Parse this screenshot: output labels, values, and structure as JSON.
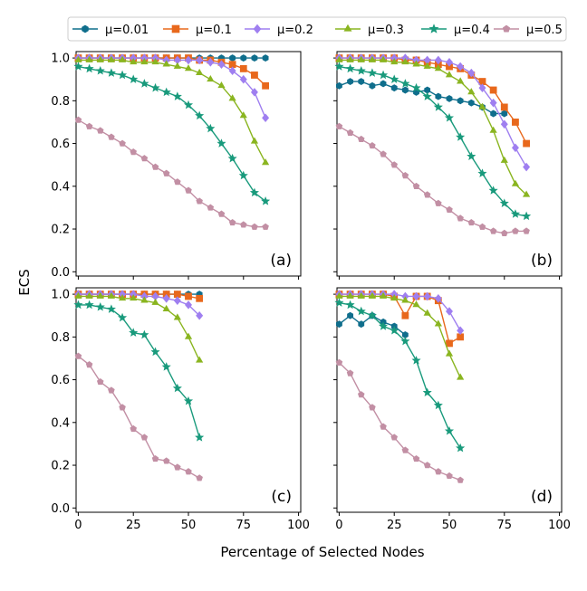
{
  "figure": {
    "ylabel": "ECS",
    "xlabel": "Percentage of Selected Nodes"
  },
  "legend": [
    {
      "label": "μ=0.01",
      "color": "#0f6e8c",
      "marker": "hexagon"
    },
    {
      "label": "μ=0.1",
      "color": "#e8681c",
      "marker": "square"
    },
    {
      "label": "μ=0.2",
      "color": "#9f7ff0",
      "marker": "diamond"
    },
    {
      "label": "μ=0.3",
      "color": "#8ab520",
      "marker": "triangle"
    },
    {
      "label": "μ=0.4",
      "color": "#199a7c",
      "marker": "star"
    },
    {
      "label": "μ=0.5",
      "color": "#c28fa4",
      "marker": "pentagon"
    }
  ],
  "chart_data": [
    {
      "type": "line",
      "panel_label": "(a)",
      "xlim": [
        -1,
        101
      ],
      "ylim": [
        -0.02,
        1.03
      ],
      "xticks": [
        "0",
        "25",
        "50",
        "75",
        "100"
      ],
      "yticks": [
        "0.0",
        "0.2",
        "0.4",
        "0.6",
        "0.8",
        "1.0"
      ],
      "series": [
        {
          "name": "μ=0.01",
          "x": [
            0,
            5,
            10,
            15,
            20,
            25,
            30,
            35,
            40,
            45,
            50,
            55,
            60,
            65,
            70,
            75,
            80,
            85
          ],
          "y": [
            1.0,
            1.0,
            1.0,
            1.0,
            1.0,
            1.0,
            1.0,
            1.0,
            1.0,
            1.0,
            1.0,
            1.0,
            1.0,
            1.0,
            1.0,
            1.0,
            1.0,
            1.0
          ]
        },
        {
          "name": "μ=0.1",
          "x": [
            0,
            5,
            10,
            15,
            20,
            25,
            30,
            35,
            40,
            45,
            50,
            55,
            60,
            65,
            70,
            75,
            80,
            85
          ],
          "y": [
            1.0,
            1.0,
            1.0,
            1.0,
            1.0,
            1.0,
            1.0,
            1.0,
            1.0,
            1.0,
            1.0,
            0.99,
            0.99,
            0.98,
            0.97,
            0.95,
            0.92,
            0.87
          ]
        },
        {
          "name": "μ=0.2",
          "x": [
            0,
            5,
            10,
            15,
            20,
            25,
            30,
            35,
            40,
            45,
            50,
            55,
            60,
            65,
            70,
            75,
            80,
            85
          ],
          "y": [
            1.0,
            1.0,
            1.0,
            1.0,
            1.0,
            1.0,
            1.0,
            1.0,
            0.99,
            0.99,
            0.99,
            0.99,
            0.98,
            0.97,
            0.94,
            0.9,
            0.84,
            0.72
          ]
        },
        {
          "name": "μ=0.3",
          "x": [
            0,
            5,
            10,
            15,
            20,
            25,
            30,
            35,
            40,
            45,
            50,
            55,
            60,
            65,
            70,
            75,
            80,
            85
          ],
          "y": [
            0.99,
            0.99,
            0.99,
            0.99,
            0.99,
            0.98,
            0.98,
            0.98,
            0.97,
            0.96,
            0.95,
            0.93,
            0.9,
            0.87,
            0.81,
            0.73,
            0.61,
            0.51
          ]
        },
        {
          "name": "μ=0.4",
          "x": [
            0,
            5,
            10,
            15,
            20,
            25,
            30,
            35,
            40,
            45,
            50,
            55,
            60,
            65,
            70,
            75,
            80,
            85
          ],
          "y": [
            0.96,
            0.95,
            0.94,
            0.93,
            0.92,
            0.9,
            0.88,
            0.86,
            0.84,
            0.82,
            0.78,
            0.73,
            0.67,
            0.6,
            0.53,
            0.45,
            0.37,
            0.33
          ]
        },
        {
          "name": "μ=0.5",
          "x": [
            0,
            5,
            10,
            15,
            20,
            25,
            30,
            35,
            40,
            45,
            50,
            55,
            60,
            65,
            70,
            75,
            80,
            85
          ],
          "y": [
            0.71,
            0.68,
            0.66,
            0.63,
            0.6,
            0.56,
            0.53,
            0.49,
            0.46,
            0.42,
            0.38,
            0.33,
            0.3,
            0.27,
            0.23,
            0.22,
            0.21,
            0.21
          ]
        }
      ]
    },
    {
      "type": "line",
      "panel_label": "(b)",
      "xlim": [
        -1,
        101
      ],
      "ylim": [
        -0.02,
        1.03
      ],
      "xticks": [
        "0",
        "25",
        "50",
        "75",
        "100"
      ],
      "yticks": [
        "0.0",
        "0.2",
        "0.4",
        "0.6",
        "0.8",
        "1.0"
      ],
      "series": [
        {
          "name": "μ=0.01",
          "x": [
            0,
            5,
            10,
            15,
            20,
            25,
            30,
            35,
            40,
            45,
            50,
            55,
            60,
            65,
            70,
            75
          ],
          "y": [
            0.87,
            0.89,
            0.89,
            0.87,
            0.88,
            0.86,
            0.85,
            0.84,
            0.85,
            0.82,
            0.81,
            0.8,
            0.79,
            0.77,
            0.74,
            0.74
          ]
        },
        {
          "name": "μ=0.1",
          "x": [
            0,
            5,
            10,
            15,
            20,
            25,
            30,
            35,
            40,
            45,
            50,
            55,
            60,
            65,
            70,
            75,
            80,
            85
          ],
          "y": [
            1.0,
            1.0,
            1.0,
            1.0,
            1.0,
            1.0,
            0.99,
            0.99,
            0.98,
            0.97,
            0.96,
            0.95,
            0.92,
            0.89,
            0.85,
            0.77,
            0.7,
            0.6
          ]
        },
        {
          "name": "μ=0.2",
          "x": [
            0,
            5,
            10,
            15,
            20,
            25,
            30,
            35,
            40,
            45,
            50,
            55,
            60,
            65,
            70,
            75,
            80,
            85
          ],
          "y": [
            1.0,
            1.0,
            1.0,
            1.0,
            1.0,
            1.0,
            1.0,
            0.99,
            0.99,
            0.99,
            0.98,
            0.96,
            0.93,
            0.86,
            0.79,
            0.69,
            0.58,
            0.49
          ]
        },
        {
          "name": "μ=0.3",
          "x": [
            0,
            5,
            10,
            15,
            20,
            25,
            30,
            35,
            40,
            45,
            50,
            55,
            60,
            65,
            70,
            75,
            80,
            85
          ],
          "y": [
            0.99,
            0.99,
            0.99,
            0.99,
            0.99,
            0.98,
            0.98,
            0.97,
            0.96,
            0.95,
            0.92,
            0.89,
            0.84,
            0.77,
            0.66,
            0.52,
            0.41,
            0.36
          ]
        },
        {
          "name": "μ=0.4",
          "x": [
            0,
            5,
            10,
            15,
            20,
            25,
            30,
            35,
            40,
            45,
            50,
            55,
            60,
            65,
            70,
            75,
            80,
            85
          ],
          "y": [
            0.96,
            0.95,
            0.94,
            0.93,
            0.92,
            0.9,
            0.88,
            0.86,
            0.82,
            0.77,
            0.72,
            0.63,
            0.54,
            0.46,
            0.38,
            0.32,
            0.27,
            0.26
          ]
        },
        {
          "name": "μ=0.5",
          "x": [
            0,
            5,
            10,
            15,
            20,
            25,
            30,
            35,
            40,
            45,
            50,
            55,
            60,
            65,
            70,
            75,
            80,
            85
          ],
          "y": [
            0.68,
            0.65,
            0.62,
            0.59,
            0.55,
            0.5,
            0.45,
            0.4,
            0.36,
            0.32,
            0.29,
            0.25,
            0.23,
            0.21,
            0.19,
            0.18,
            0.19,
            0.19
          ]
        }
      ]
    },
    {
      "type": "line",
      "panel_label": "(c)",
      "xlim": [
        -1,
        101
      ],
      "ylim": [
        -0.02,
        1.03
      ],
      "xticks": [
        "0",
        "25",
        "50",
        "75",
        "100"
      ],
      "yticks": [
        "0.0",
        "0.2",
        "0.4",
        "0.6",
        "0.8",
        "1.0"
      ],
      "series": [
        {
          "name": "μ=0.01",
          "x": [
            0,
            5,
            10,
            15,
            20,
            25,
            30,
            35,
            40,
            45,
            50,
            55
          ],
          "y": [
            1.0,
            1.0,
            1.0,
            1.0,
            1.0,
            1.0,
            1.0,
            1.0,
            1.0,
            1.0,
            1.0,
            1.0
          ]
        },
        {
          "name": "μ=0.1",
          "x": [
            0,
            5,
            10,
            15,
            20,
            25,
            30,
            35,
            40,
            45,
            50,
            55
          ],
          "y": [
            1.0,
            1.0,
            1.0,
            1.0,
            1.0,
            1.0,
            1.0,
            1.0,
            1.0,
            1.0,
            0.99,
            0.98
          ]
        },
        {
          "name": "μ=0.2",
          "x": [
            0,
            5,
            10,
            15,
            20,
            25,
            30,
            35,
            40,
            45,
            50,
            55
          ],
          "y": [
            1.0,
            1.0,
            1.0,
            1.0,
            1.0,
            1.0,
            0.99,
            0.99,
            0.98,
            0.97,
            0.95,
            0.9
          ]
        },
        {
          "name": "μ=0.3",
          "x": [
            0,
            5,
            10,
            15,
            20,
            25,
            30,
            35,
            40,
            45,
            50,
            55
          ],
          "y": [
            0.99,
            0.99,
            0.99,
            0.99,
            0.98,
            0.98,
            0.97,
            0.96,
            0.93,
            0.89,
            0.8,
            0.69
          ]
        },
        {
          "name": "μ=0.4",
          "x": [
            0,
            5,
            10,
            15,
            20,
            25,
            30,
            35,
            40,
            45,
            50,
            55
          ],
          "y": [
            0.95,
            0.95,
            0.94,
            0.93,
            0.89,
            0.82,
            0.81,
            0.73,
            0.66,
            0.56,
            0.5,
            0.33
          ]
        },
        {
          "name": "μ=0.5",
          "x": [
            0,
            5,
            10,
            15,
            20,
            25,
            30,
            35,
            40,
            45,
            50,
            55
          ],
          "y": [
            0.71,
            0.67,
            0.59,
            0.55,
            0.47,
            0.37,
            0.33,
            0.23,
            0.22,
            0.19,
            0.17,
            0.14
          ]
        }
      ]
    },
    {
      "type": "line",
      "panel_label": "(d)",
      "xlim": [
        -1,
        101
      ],
      "ylim": [
        -0.02,
        1.03
      ],
      "xticks": [
        "0",
        "25",
        "50",
        "75",
        "100"
      ],
      "yticks": [
        "0.0",
        "0.2",
        "0.4",
        "0.6",
        "0.8",
        "1.0"
      ],
      "series": [
        {
          "name": "μ=0.01",
          "x": [
            0,
            5,
            10,
            15,
            20,
            25,
            30
          ],
          "y": [
            0.86,
            0.9,
            0.86,
            0.9,
            0.87,
            0.85,
            0.81
          ]
        },
        {
          "name": "μ=0.1",
          "x": [
            0,
            5,
            10,
            15,
            20,
            25,
            30,
            35,
            40,
            45,
            50,
            55
          ],
          "y": [
            1.0,
            1.0,
            1.0,
            1.0,
            1.0,
            0.99,
            0.9,
            0.99,
            0.99,
            0.97,
            0.77,
            0.8
          ]
        },
        {
          "name": "μ=0.2",
          "x": [
            0,
            5,
            10,
            15,
            20,
            25,
            30,
            35,
            40,
            45,
            50,
            55
          ],
          "y": [
            1.0,
            1.0,
            1.0,
            1.0,
            1.0,
            1.0,
            0.99,
            0.99,
            0.99,
            0.98,
            0.92,
            0.83
          ]
        },
        {
          "name": "μ=0.3",
          "x": [
            0,
            5,
            10,
            15,
            20,
            25,
            30,
            35,
            40,
            45,
            50,
            55
          ],
          "y": [
            0.99,
            0.99,
            0.99,
            0.99,
            0.99,
            0.98,
            0.97,
            0.95,
            0.91,
            0.86,
            0.72,
            0.61
          ]
        },
        {
          "name": "μ=0.4",
          "x": [
            0,
            5,
            10,
            15,
            20,
            25,
            30,
            35,
            40,
            45,
            50,
            55
          ],
          "y": [
            0.96,
            0.95,
            0.92,
            0.9,
            0.85,
            0.83,
            0.78,
            0.69,
            0.54,
            0.48,
            0.36,
            0.28
          ]
        },
        {
          "name": "μ=0.5",
          "x": [
            0,
            5,
            10,
            15,
            20,
            25,
            30,
            35,
            40,
            45,
            50,
            55
          ],
          "y": [
            0.68,
            0.63,
            0.53,
            0.47,
            0.38,
            0.33,
            0.27,
            0.23,
            0.2,
            0.17,
            0.15,
            0.13
          ]
        }
      ]
    }
  ]
}
